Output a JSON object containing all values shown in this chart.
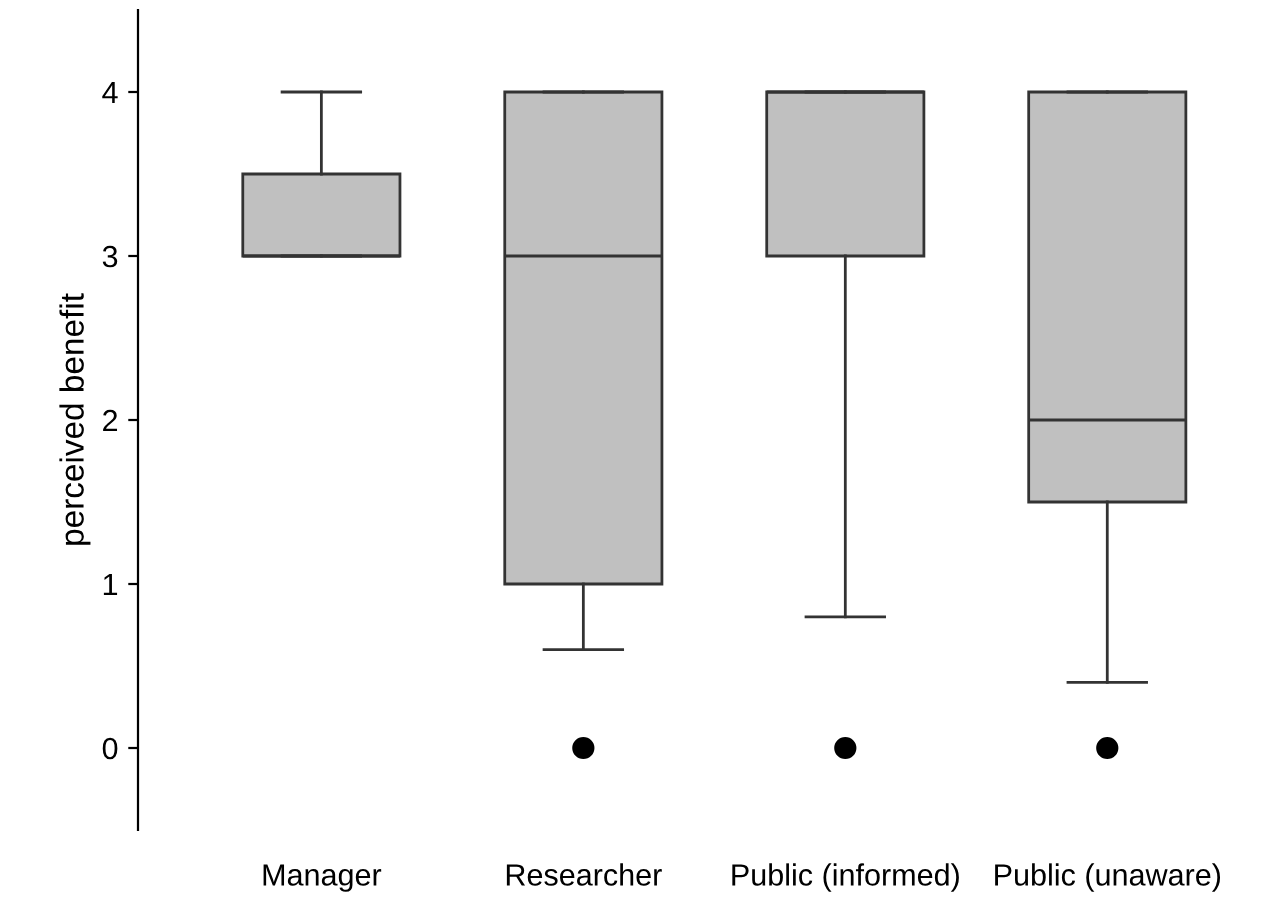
{
  "chart_data": {
    "type": "box",
    "ylabel": "perceived benefit",
    "categories": [
      "Manager",
      "Researcher",
      "Public (informed)",
      "Public (unaware)"
    ],
    "boxes": [
      {
        "low": 3,
        "q1": 3,
        "median": 3,
        "q3": 3.5,
        "high": 4
      },
      {
        "low": 0.6,
        "q1": 1,
        "median": 3,
        "q3": 4,
        "high": 4,
        "outliers": [
          0
        ]
      },
      {
        "low": 0.8,
        "q1": 3,
        "median": 4,
        "q3": 4,
        "high": 4,
        "outliers": [
          0
        ]
      },
      {
        "low": 0.4,
        "q1": 1.5,
        "median": 2,
        "q3": 4,
        "high": 4,
        "outliers": [
          0
        ]
      }
    ],
    "color": "#c0c0c0",
    "ylim": [
      -0.5,
      4.5
    ],
    "yticks": [
      0,
      1,
      2,
      3,
      4
    ],
    "grid": false,
    "legend": false
  }
}
